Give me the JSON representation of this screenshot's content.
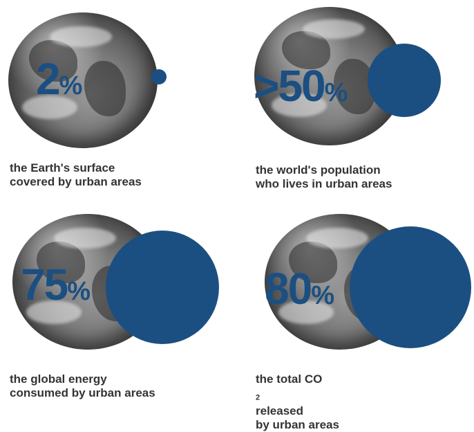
{
  "accent_color": "#1b4f82",
  "stats": [
    {
      "value": "2",
      "unit": "%",
      "share": 0.02,
      "caption_lines": [
        "the Earth's surface",
        "covered by urban areas"
      ]
    },
    {
      "value": ">50",
      "unit": "%",
      "share": 0.5,
      "caption_lines": [
        "the world's population",
        "who lives in urban areas"
      ]
    },
    {
      "value": "75",
      "unit": "%",
      "share": 0.75,
      "caption_lines": [
        "the global energy",
        "consumed by urban areas"
      ]
    },
    {
      "value": "80",
      "unit": "%",
      "share": 0.8,
      "caption_lines": [
        "the total CO",
        "2",
        " released",
        "by urban areas"
      ]
    }
  ]
}
